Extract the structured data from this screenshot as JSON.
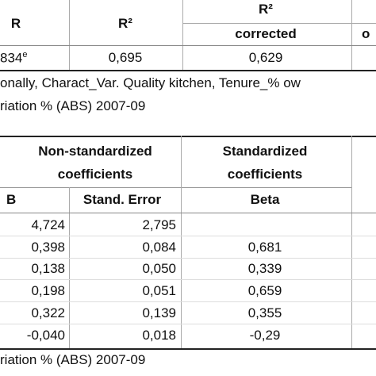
{
  "model_summary": {
    "col_r": "R",
    "col_r2": "R²",
    "col_r2_corrected_top": "R²",
    "col_r2_corrected_bottom": "corrected",
    "col_partial": "o",
    "row_r_value": "834",
    "row_r_sup": "e",
    "row_r2": "0,695",
    "row_r2_corrected": "0,629",
    "predictors_note": "onally, Charact_Var. Quality kitchen, Tenure_% ow",
    "dependent_note": "riation % (ABS) 2007-09"
  },
  "coefficients": {
    "header_nonstd_line1": "Non-standardized",
    "header_nonstd_line2": "coefficients",
    "header_std_line1": "Standardized",
    "header_std_line2": "coefficients",
    "col_b": "B",
    "col_se": "Stand. Error",
    "col_beta": "Beta",
    "rows": [
      {
        "b": "4,724",
        "se": "2,795",
        "beta": ""
      },
      {
        "b": "0,398",
        "se": "0,084",
        "beta": "0,681"
      },
      {
        "b": "0,138",
        "se": "0,050",
        "beta": "0,339"
      },
      {
        "b": "0,198",
        "se": "0,051",
        "beta": "0,659"
      },
      {
        "b": "0,322",
        "se": "0,139",
        "beta": "0,355"
      },
      {
        "b": "-0,040",
        "se": "0,018",
        "beta": "-0,29"
      }
    ],
    "dependent_note": "riation % (ABS) 2007-09"
  }
}
